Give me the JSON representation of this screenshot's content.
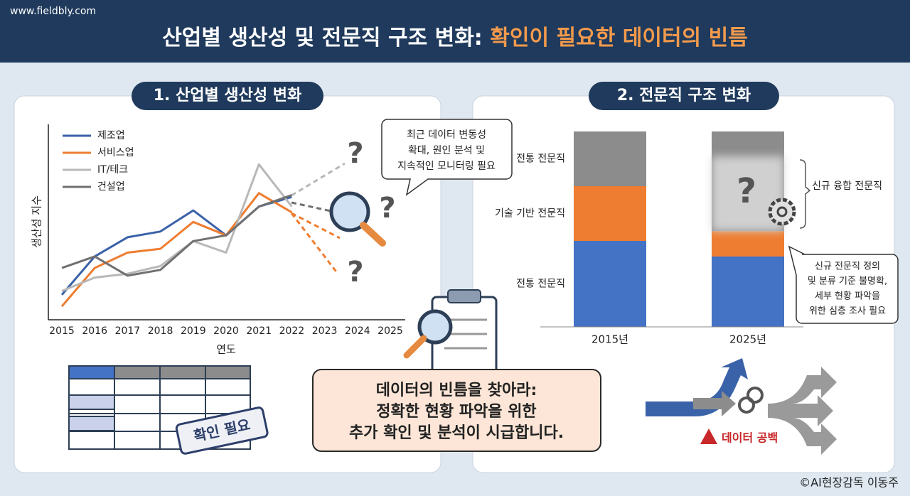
{
  "header": {
    "site": "www.fieldbly.com",
    "title_main": "산업별 생산성 및 전문직 구조 변화:",
    "title_accent": "확인이 필요한 데이터의 빈틈"
  },
  "sections": [
    "1. 산업별 생산성 변화",
    "2. 전문직 구조 변화"
  ],
  "chart_data": [
    {
      "type": "line",
      "x_label": "연도",
      "y_label": "생산성 지수",
      "categories": [
        "2015",
        "2016",
        "2017",
        "2018",
        "2019",
        "2020",
        "2021",
        "2022",
        "2023",
        "2024",
        "2025"
      ],
      "ylim": [
        0,
        100
      ],
      "series": [
        {
          "name": "제조업",
          "color": "#3a62a8",
          "values": [
            13,
            33,
            43,
            46,
            57,
            44,
            59,
            64,
            null,
            null,
            null
          ]
        },
        {
          "name": "서비스업",
          "color": "#ee7d31",
          "values": [
            7,
            27,
            35,
            37,
            51,
            44,
            66,
            56,
            null,
            null,
            null
          ]
        },
        {
          "name": "IT/테크",
          "color": "#b8b8b8",
          "values": [
            15,
            22,
            24,
            28,
            41,
            35,
            81,
            59,
            null,
            null,
            null
          ]
        },
        {
          "name": "건설업",
          "color": "#707070",
          "values": [
            27,
            33,
            23,
            26,
            41,
            44,
            59,
            65,
            null,
            null,
            null
          ]
        }
      ],
      "annotation": [
        "최근 데이터 변동성",
        "확대, 원인 분석 및",
        "지속적인 모니터링 필요"
      ]
    },
    {
      "type": "stacked_bar",
      "categories": [
        "2015년",
        "2025년"
      ],
      "ylim": [
        0,
        100
      ],
      "series": [
        {
          "name": "전통 전문직",
          "color": "#4472c4",
          "values": [
            44,
            36
          ]
        },
        {
          "name": "기술 기반 전문직",
          "color": "#ee7d31",
          "values": [
            28,
            13
          ]
        },
        {
          "name": "전통 전문직",
          "color": "#8c8c8c",
          "values": [
            28,
            51
          ]
        }
      ],
      "annotation_label": "신규 융합 전문직",
      "annotation": [
        "신규 전문직 정의",
        "및 분류 기준 불명확,",
        "세부 현황 파악을",
        "위한 심층 조사 필요"
      ]
    }
  ],
  "question_mark": "?",
  "stamp": "확인 필요",
  "message": [
    "데이터의 빈틈을 찾아라:",
    "정확한 현황 파악을 위한",
    "추가 확인 및 분석이 시급합니다."
  ],
  "gap_label": "데이터 공백",
  "footer": "©AI현장감독 이동주"
}
